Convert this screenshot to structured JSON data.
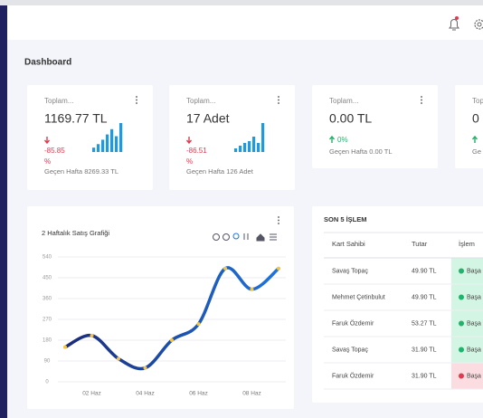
{
  "header": {
    "title": "Dashboard"
  },
  "cards": [
    {
      "label": "Toplam...",
      "value": "1169.77 TL",
      "change": "-85.85",
      "unit": "%",
      "previous": "Geçen Hafta 8269.33 TL",
      "trend": "down",
      "bars": [
        5,
        9,
        14,
        20,
        26,
        18,
        33
      ]
    },
    {
      "label": "Toplam...",
      "value": "17 Adet",
      "change": "-86.51",
      "unit": "%",
      "previous": "Geçen Hafta 126 Adet",
      "trend": "down",
      "bars": [
        4,
        7,
        10,
        12,
        17,
        10,
        32
      ]
    },
    {
      "label": "Toplam...",
      "value": "0.00 TL",
      "change": "0%",
      "previous": "Geçen Hafta 0.00 TL",
      "trend": "up"
    },
    {
      "label": "Toplam...",
      "value": "0",
      "previous": "Ge",
      "trend": "up"
    }
  ],
  "chart": {
    "type": "line",
    "title": "2 Haftalık Satış Grafiği",
    "categories": [
      null,
      "02 Haz",
      null,
      "04 Haz",
      null,
      "06 Haz",
      null,
      "08 Haz",
      null
    ],
    "values": [
      150,
      200,
      100,
      60,
      180,
      250,
      490,
      400,
      490
    ],
    "ylim": [
      0,
      540
    ],
    "yticks": [
      0,
      90,
      180,
      270,
      360,
      450,
      540
    ],
    "grid": true,
    "color": "#1565c0",
    "marker_color": "#f5c542"
  },
  "table": {
    "title": "SON 5 İŞLEM",
    "columns": [
      "Kart Sahibi",
      "Tutar",
      "İşlem"
    ],
    "rows": [
      {
        "cells": [
          "Savaş Topaç",
          "49.90 TL",
          "Başa"
        ],
        "color": "#d3f5e3",
        "dot": "#1fb36b"
      },
      {
        "cells": [
          "Mehmet Çetinbulut",
          "49.90 TL",
          "Başa"
        ],
        "color": "#d3f5e3",
        "dot": "#1fb36b"
      },
      {
        "cells": [
          "Faruk Özdemir",
          "53.27 TL",
          "Başa"
        ],
        "color": "#d3f5e3",
        "dot": "#1fb36b"
      },
      {
        "cells": [
          "Savaş Topaç",
          "31.90 TL",
          "Başa"
        ],
        "color": "#d3f5e3",
        "dot": "#1fb36b"
      },
      {
        "cells": [
          "Faruk Özdemir",
          "31.90 TL",
          "Başa"
        ],
        "color": "#fbdde1",
        "dot": "#e5394f"
      }
    ]
  }
}
